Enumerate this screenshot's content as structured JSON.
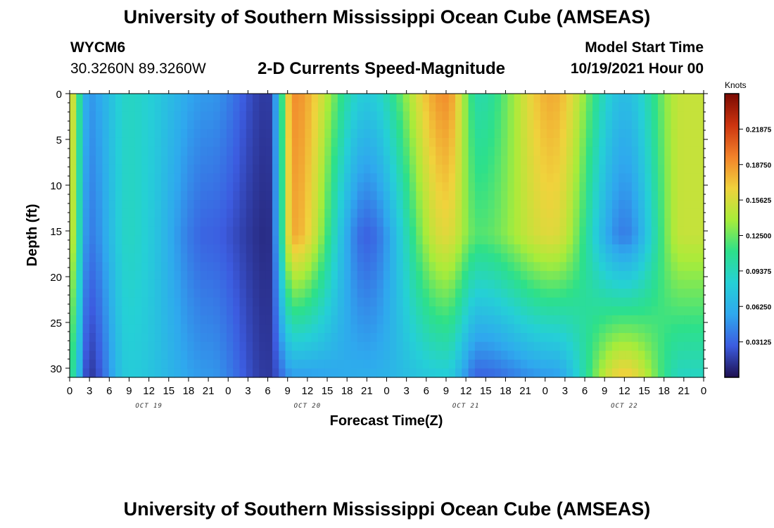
{
  "page": {
    "title": "University of Southern Mississippi Ocean Cube (AMSEAS)",
    "title_repeat": "University of Southern Mississippi Ocean Cube (AMSEAS)",
    "station_id": "WYCM6",
    "station_coords": "30.3260N  89.3260W",
    "plot_title": "2-D Currents Speed-Magnitude",
    "model_start_label": "Model Start Time",
    "model_start_value": "10/19/2021 Hour 00"
  },
  "colors": {
    "colormap": [
      "#1e1050",
      "#3c5ce0",
      "#2fa8ee",
      "#25d0d6",
      "#2de08a",
      "#a8ec3a",
      "#f0d23c",
      "#f2822a",
      "#cc3410",
      "#7a0a02"
    ]
  },
  "chart_data": {
    "type": "heatmap",
    "title": "2-D Currents Speed-Magnitude",
    "xlabel": "Forecast Time(Z)",
    "ylabel": "Depth (ft)",
    "x_hours": [
      0,
      96
    ],
    "x_tick_labels": [
      "0",
      "3",
      "6",
      "9",
      "12",
      "15",
      "18",
      "21",
      "0",
      "3",
      "6",
      "9",
      "12",
      "15",
      "18",
      "21",
      "0",
      "3",
      "6",
      "9",
      "12",
      "15",
      "18",
      "21",
      "0",
      "3",
      "6",
      "9",
      "12",
      "15",
      "18",
      "21",
      "0"
    ],
    "date_labels": [
      {
        "hour": 12,
        "label": "OCT 19"
      },
      {
        "hour": 36,
        "label": "OCT 20"
      },
      {
        "hour": 60,
        "label": "OCT 21"
      },
      {
        "hour": 84,
        "label": "OCT 22"
      }
    ],
    "y_ticks": [
      0,
      5,
      10,
      15,
      20,
      25,
      30
    ],
    "ylim": [
      0,
      31
    ],
    "y_inverted": true,
    "colorbar": {
      "units": "Knots",
      "range": [
        0,
        0.25
      ],
      "tick_values": [
        0.03125,
        0.0625,
        0.09375,
        0.125,
        0.15625,
        0.1875,
        0.21875
      ],
      "tick_labels": [
        "0.03125",
        "0.06250",
        "0.09375",
        "0.12500",
        "0.15625",
        "0.18750",
        "0.21875"
      ]
    },
    "grid_resolution": {
      "time_steps": 97,
      "depth_levels": 32
    },
    "speed_profile_knots": [
      {
        "hour": 0,
        "surface": 0.16,
        "mid": 0.15,
        "bottom": 0.11
      },
      {
        "hour": 3,
        "surface": 0.05,
        "mid": 0.04,
        "bottom": 0.015
      },
      {
        "hour": 9,
        "surface": 0.09,
        "mid": 0.09,
        "bottom": 0.08
      },
      {
        "hour": 21,
        "surface": 0.05,
        "mid": 0.03,
        "bottom": 0.05
      },
      {
        "hour": 30,
        "surface": 0.015,
        "mid": 0.01,
        "bottom": 0.015
      },
      {
        "hour": 34,
        "surface": 0.19,
        "mid": 0.18,
        "bottom": 0.05
      },
      {
        "hour": 45,
        "surface": 0.08,
        "mid": 0.03,
        "bottom": 0.06
      },
      {
        "hour": 57,
        "surface": 0.19,
        "mid": 0.16,
        "bottom": 0.08
      },
      {
        "hour": 62,
        "surface": 0.1,
        "mid": 0.12,
        "bottom": 0.03
      },
      {
        "hour": 73,
        "surface": 0.18,
        "mid": 0.16,
        "bottom": 0.05
      },
      {
        "hour": 84,
        "surface": 0.07,
        "mid": 0.04,
        "bottom": 0.17
      },
      {
        "hour": 93,
        "surface": 0.15,
        "mid": 0.15,
        "bottom": 0.09
      }
    ]
  }
}
